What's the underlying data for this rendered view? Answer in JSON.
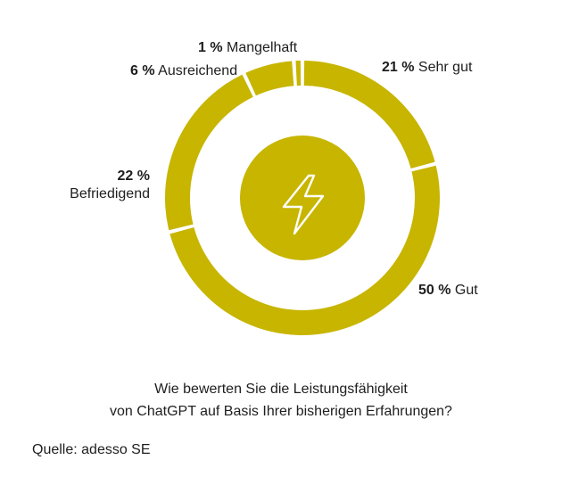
{
  "chart_data": {
    "type": "pie",
    "style": "donut",
    "categories": [
      "Sehr gut",
      "Gut",
      "Befriedigend",
      "Ausreichend",
      "Mangelhaft"
    ],
    "values": [
      21,
      50,
      22,
      6,
      1
    ],
    "value_labels": [
      "21 %",
      "50 %",
      "22 %",
      "6 %",
      "1 %"
    ],
    "color": "#c7b500",
    "center_icon": "lightning-bolt-icon"
  },
  "question_line1": "Wie bewerten Sie die Leistungsfähigkeit",
  "question_line2": "von ChatGPT auf Basis Ihrer bisherigen Erfahrungen?",
  "source": "Quelle: adesso SE"
}
